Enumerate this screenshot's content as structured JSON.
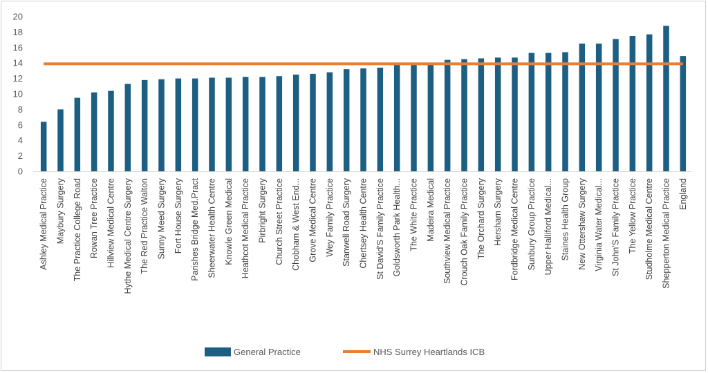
{
  "chart_data": {
    "type": "bar",
    "categories": [
      "Ashley Medical Practice",
      "Maybury Surgery",
      "The Practice College Road",
      "Rowan Tree Practice",
      "Hillview Medical Centre",
      "Hythe Medical Centre Surgery",
      "The Red Practice Walton",
      "Sunny Meed Surgery",
      "Fort House Surgery",
      "Parishes Bridge Med.Pract",
      "Sheerwater Health Centre",
      "Knowle Green Medical",
      "Heathcot Medical Practice",
      "Pirbright Surgery",
      "Church Street Practice",
      "Chobham & West End...",
      "Grove Medical Centre",
      "Wey Family Practice",
      "Stanwell Road Surgery",
      "Chertsey Health Centre",
      "St David'S Family Practice",
      "Goldsworth Park Health...",
      "The White Practice",
      "Madeira Medical",
      "Southview Medical Practice",
      "Crouch Oak Family Practice",
      "The Orchard Surgery",
      "Hersham Surgery",
      "Fordbridge Medical Centre",
      "Sunbury Group Practice",
      "Upper Halliford Medical...",
      "Staines Health Group",
      "New Ottershaw Surgery",
      "Virginia Water Medical...",
      "St John'S Family Practice",
      "The Yellow Practice",
      "Studholme Medical Centre",
      "Shepperton Medical Practice",
      "England"
    ],
    "series": [
      {
        "name": "General Practice",
        "color": "#1c5f82",
        "values": [
          6.4,
          8.0,
          9.5,
          10.2,
          10.4,
          11.3,
          11.8,
          11.9,
          12.0,
          12.0,
          12.1,
          12.1,
          12.2,
          12.2,
          12.3,
          12.5,
          12.6,
          12.8,
          13.2,
          13.3,
          13.4,
          13.8,
          13.9,
          14.0,
          14.4,
          14.5,
          14.6,
          14.7,
          14.7,
          15.3,
          15.3,
          15.4,
          16.5,
          16.5,
          17.1,
          17.5,
          17.7,
          18.8,
          14.9
        ]
      },
      {
        "name": "NHS Surrey Heartlands ICB",
        "color": "#ed7d31",
        "type": "line",
        "value": 13.9
      }
    ],
    "ylim": [
      0,
      20
    ],
    "yticks": [
      "0",
      "2",
      "4",
      "6",
      "8",
      "10",
      "12",
      "14",
      "16",
      "18",
      "20"
    ],
    "grid": false,
    "legend_position": "bottom"
  }
}
